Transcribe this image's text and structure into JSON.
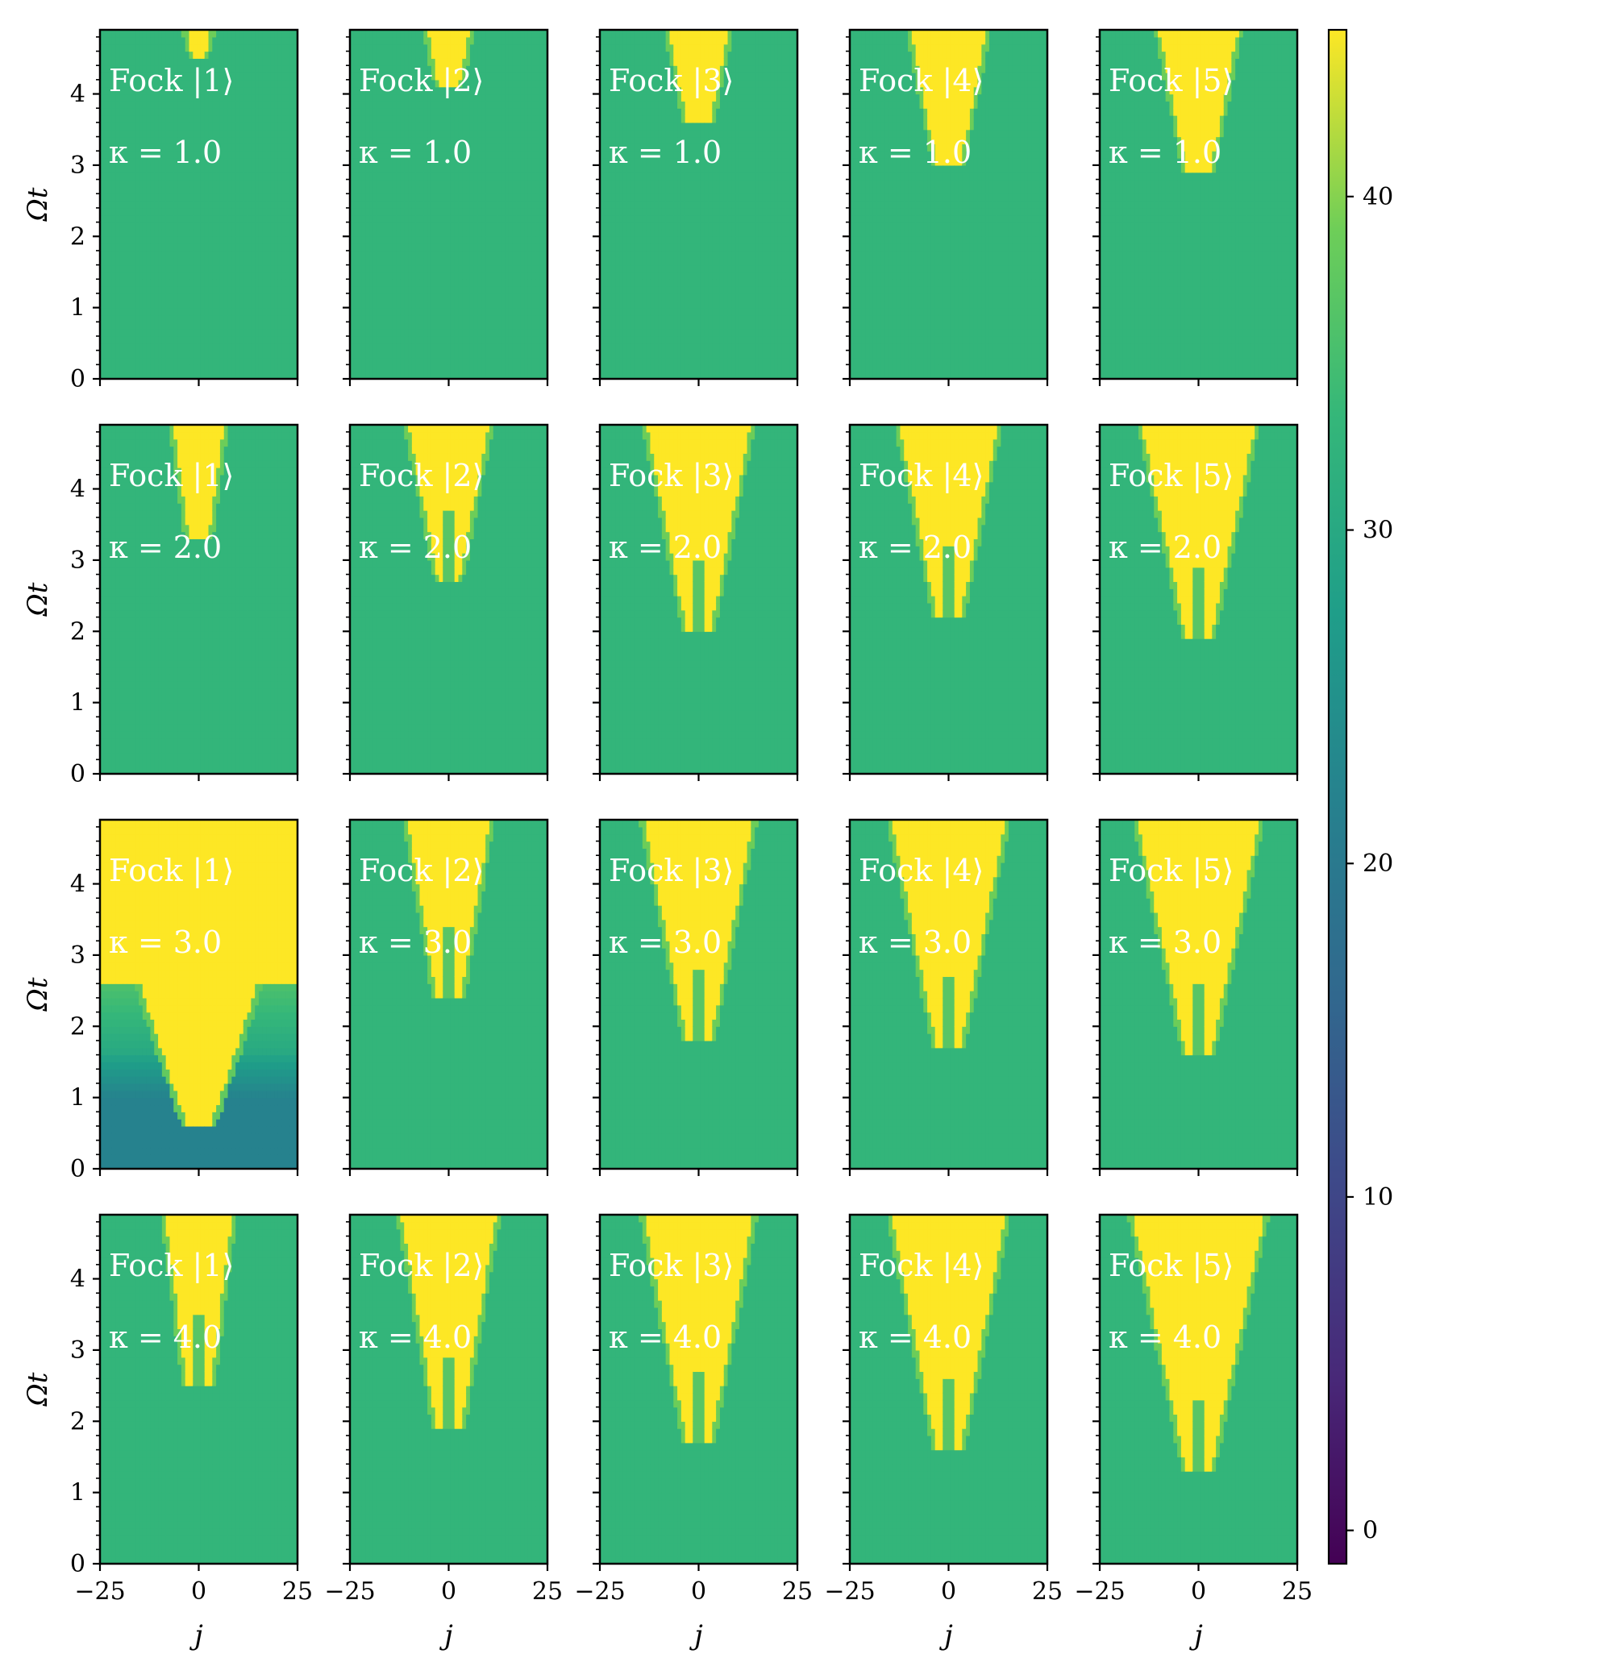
{
  "chart_data": {
    "type": "heatmap",
    "layout": {
      "rows": 4,
      "cols": 5
    },
    "xlabel": "j",
    "ylabel": "Ωt",
    "xlim": [
      -25,
      25
    ],
    "ylim": [
      0,
      4.9
    ],
    "xticks": [
      -25,
      0,
      25
    ],
    "xtick_labels": [
      "−25",
      "0",
      "25"
    ],
    "yticks": [
      0,
      1,
      2,
      3,
      4
    ],
    "ytick_labels": [
      "0",
      "1",
      "2",
      "3",
      "4"
    ],
    "colorbar": {
      "colormap": "viridis",
      "range": [
        -1,
        45
      ],
      "ticks": [
        0,
        10,
        20,
        30,
        40
      ],
      "tick_labels": [
        "0",
        "10",
        "20",
        "30",
        "40"
      ]
    },
    "background_value": 33,
    "saturated_value": 45,
    "panels": [
      {
        "row": 0,
        "col": 0,
        "state_label": "Fock |1⟩",
        "kappa_label": "κ = 1.0",
        "cone_tip": 4.5,
        "cone_half_width": 1.5,
        "cone_spread": 3.5,
        "pattern": "single"
      },
      {
        "row": 0,
        "col": 1,
        "state_label": "Fock |2⟩",
        "kappa_label": "κ = 1.0",
        "cone_tip": 4.1,
        "cone_half_width": 2.5,
        "cone_spread": 3.5,
        "pattern": "single"
      },
      {
        "row": 0,
        "col": 2,
        "state_label": "Fock |3⟩",
        "kappa_label": "κ = 1.0",
        "cone_tip": 3.6,
        "cone_half_width": 3,
        "cone_spread": 3.5,
        "pattern": "single"
      },
      {
        "row": 0,
        "col": 3,
        "state_label": "Fock |4⟩",
        "kappa_label": "κ = 1.0",
        "cone_tip": 3.0,
        "cone_half_width": 3,
        "cone_spread": 3.5,
        "pattern": "single"
      },
      {
        "row": 0,
        "col": 4,
        "state_label": "Fock |5⟩",
        "kappa_label": "κ = 1.0",
        "cone_tip": 2.9,
        "cone_half_width": 3,
        "cone_spread": 3.5,
        "pattern": "single"
      },
      {
        "row": 1,
        "col": 0,
        "state_label": "Fock |1⟩",
        "kappa_label": "κ = 2.0",
        "cone_tip": 3.3,
        "cone_half_width": 2.5,
        "cone_spread": 2.5,
        "pattern": "single"
      },
      {
        "row": 1,
        "col": 1,
        "state_label": "Fock |2⟩",
        "kappa_label": "κ = 2.0",
        "cone_tip": 2.7,
        "cone_half_width": 2.5,
        "cone_spread": 3.5,
        "pattern": "double"
      },
      {
        "row": 1,
        "col": 2,
        "state_label": "Fock |3⟩",
        "kappa_label": "κ = 2.0",
        "cone_tip": 2.0,
        "cone_half_width": 3,
        "cone_spread": 3.5,
        "pattern": "double"
      },
      {
        "row": 1,
        "col": 3,
        "state_label": "Fock |4⟩",
        "kappa_label": "κ = 2.0",
        "cone_tip": 2.2,
        "cone_half_width": 3,
        "cone_spread": 3.5,
        "pattern": "double"
      },
      {
        "row": 1,
        "col": 4,
        "state_label": "Fock |5⟩",
        "kappa_label": "κ = 2.0",
        "cone_tip": 1.9,
        "cone_half_width": 3,
        "cone_spread": 3.8,
        "pattern": "double"
      },
      {
        "row": 2,
        "col": 0,
        "state_label": "Fock |1⟩",
        "kappa_label": "κ = 3.0",
        "cone_tip": 0.6,
        "cone_half_width": 3,
        "cone_spread": 6,
        "pattern": "full"
      },
      {
        "row": 2,
        "col": 1,
        "state_label": "Fock |2⟩",
        "kappa_label": "κ = 3.0",
        "cone_tip": 2.4,
        "cone_half_width": 3,
        "cone_spread": 3,
        "pattern": "double"
      },
      {
        "row": 2,
        "col": 2,
        "state_label": "Fock |3⟩",
        "kappa_label": "κ = 3.0",
        "cone_tip": 1.8,
        "cone_half_width": 3,
        "cone_spread": 3.5,
        "pattern": "double"
      },
      {
        "row": 2,
        "col": 3,
        "state_label": "Fock |4⟩",
        "kappa_label": "κ = 3.0",
        "cone_tip": 1.7,
        "cone_half_width": 3,
        "cone_spread": 3.6,
        "pattern": "double"
      },
      {
        "row": 2,
        "col": 4,
        "state_label": "Fock |5⟩",
        "kappa_label": "κ = 3.0",
        "cone_tip": 1.6,
        "cone_half_width": 3,
        "cone_spread": 3.8,
        "pattern": "double"
      },
      {
        "row": 3,
        "col": 0,
        "state_label": "Fock |1⟩",
        "kappa_label": "κ = 4.0",
        "cone_tip": 2.5,
        "cone_half_width": 3,
        "cone_spread": 2.3,
        "pattern": "double"
      },
      {
        "row": 3,
        "col": 1,
        "state_label": "Fock |2⟩",
        "kappa_label": "κ = 4.0",
        "cone_tip": 1.9,
        "cone_half_width": 3,
        "cone_spread": 3,
        "pattern": "double"
      },
      {
        "row": 3,
        "col": 2,
        "state_label": "Fock |3⟩",
        "kappa_label": "κ = 4.0",
        "cone_tip": 1.7,
        "cone_half_width": 3,
        "cone_spread": 3.4,
        "pattern": "double"
      },
      {
        "row": 3,
        "col": 3,
        "state_label": "Fock |4⟩",
        "kappa_label": "κ = 4.0",
        "cone_tip": 1.6,
        "cone_half_width": 3,
        "cone_spread": 3.5,
        "pattern": "double"
      },
      {
        "row": 3,
        "col": 4,
        "state_label": "Fock |5⟩",
        "kappa_label": "κ = 4.0",
        "cone_tip": 1.3,
        "cone_half_width": 3,
        "cone_spread": 3.8,
        "pattern": "double"
      }
    ]
  }
}
